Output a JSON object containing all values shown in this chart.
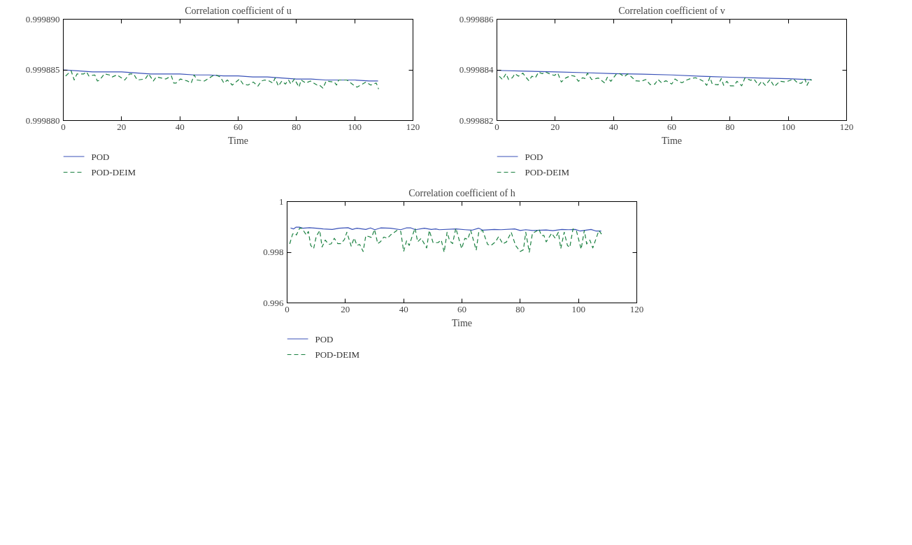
{
  "chart_data": [
    {
      "type": "line",
      "title": "Correlation coefficient of u",
      "xlabel": "Time",
      "xlim": [
        0,
        120
      ],
      "xticks": [
        0,
        20,
        40,
        60,
        80,
        100,
        120
      ],
      "ylim": [
        0.99988,
        0.99989
      ],
      "yticks": [
        {
          "value": 0.99988,
          "label": "0.999880"
        },
        0.999885,
        {
          "value": 0.99989,
          "label": "0.999890"
        }
      ],
      "legend": "bottom",
      "series": [
        {
          "name": "POD",
          "color": "#3a52b8",
          "line_style": "solid",
          "x": [
            0,
            5,
            10,
            15,
            20,
            25,
            30,
            35,
            40,
            45,
            50,
            55,
            60,
            65,
            70,
            75,
            80,
            85,
            90,
            95,
            100,
            105,
            108
          ],
          "values": [
            0.999885,
            0.9998849,
            0.9998848,
            0.9998848,
            0.9998848,
            0.9998847,
            0.9998846,
            0.9998846,
            0.9998846,
            0.9998845,
            0.9998845,
            0.9998844,
            0.9998844,
            0.9998843,
            0.9998843,
            0.9998842,
            0.9998841,
            0.9998841,
            0.999884,
            0.999884,
            0.999884,
            0.9998839,
            0.9998839
          ]
        },
        {
          "name": "POD-DEIM",
          "color": "#1a8040",
          "line_style": "dashed",
          "x": [
            0.8,
            2.7,
            3.75,
            4.7,
            7.0,
            8.0,
            8.75,
            10.8,
            11.7,
            12.5,
            14.1,
            15.8,
            16.8,
            18.4,
            21.1,
            22.7,
            24.1,
            25.4,
            28.1,
            29.3,
            30.9,
            31.9,
            35.2,
            37.1,
            37.9,
            38.7,
            40.2,
            42.6,
            43.9,
            44.9,
            45.9,
            48.4,
            51.2,
            52.3,
            53.9,
            55.1,
            56.3,
            58.0,
            60.5,
            61.7,
            63.4,
            65.2,
            66.8,
            68.0,
            69.1,
            70.7,
            71.9,
            72.7,
            73.8,
            75.0,
            76.2,
            77.3,
            78.1,
            79.3,
            80.9,
            81.6,
            83.2,
            84.8,
            87.1,
            87.9,
            89.1,
            90.2,
            93.0,
            93.75,
            94.5,
            97.3,
            99.6,
            100.8,
            103.9,
            105.5,
            107.4,
            108.2
          ],
          "values": [
            0.9998844,
            0.9998849,
            0.999884,
            0.9998846,
            0.9998846,
            0.9998848,
            0.9998844,
            0.9998845,
            0.9998839,
            0.999884,
            0.9998846,
            0.9998845,
            0.9998843,
            0.9998845,
            0.999884,
            0.9998846,
            0.9998846,
            0.999884,
            0.9998841,
            0.9998846,
            0.9998839,
            0.9998843,
            0.9998841,
            0.9998844,
            0.9998837,
            0.9998837,
            0.9998841,
            0.9998839,
            0.9998837,
            0.9998845,
            0.999884,
            0.9998839,
            0.9998844,
            0.9998845,
            0.9998843,
            0.9998837,
            0.999884,
            0.9998835,
            0.9998841,
            0.9998836,
            0.9998835,
            0.9998838,
            0.9998834,
            0.9998839,
            0.999884,
            0.9998839,
            0.9998837,
            0.9998842,
            0.9998834,
            0.9998839,
            0.9998836,
            0.999884,
            0.9998836,
            0.9998841,
            0.9998833,
            0.999884,
            0.9998837,
            0.9998839,
            0.9998835,
            0.9998835,
            0.9998832,
            0.9998839,
            0.9998838,
            0.9998835,
            0.999884,
            0.999884,
            0.9998835,
            0.9998833,
            0.9998838,
            0.9998835,
            0.9998837,
            0.9998831
          ]
        }
      ]
    },
    {
      "type": "line",
      "title": "Correlation coefficient of v",
      "xlabel": "Time",
      "xlim": [
        0,
        120
      ],
      "xticks": [
        0,
        20,
        40,
        60,
        80,
        100,
        120
      ],
      "ylim": [
        0.999882,
        0.999886
      ],
      "yticks": [
        0.999882,
        0.999884,
        0.999886
      ],
      "legend": "bottom",
      "series": [
        {
          "name": "POD",
          "color": "#3a52b8",
          "line_style": "solid",
          "x": [
            0,
            10,
            20,
            30,
            40,
            50,
            60,
            70,
            80,
            90,
            100,
            108
          ],
          "values": [
            0.99988398,
            0.99988395,
            0.99988392,
            0.99988389,
            0.99988385,
            0.99988383,
            0.9998838,
            0.99988375,
            0.99988371,
            0.99988368,
            0.99988365,
            0.99988361
          ]
        },
        {
          "name": "POD-DEIM",
          "color": "#1a8040",
          "line_style": "dashed",
          "x": [
            0.8,
            1.9,
            3.1,
            4.0,
            5.3,
            6.2,
            7.4,
            8.9,
            10.1,
            11.0,
            12.0,
            13.2,
            14.3,
            15.6,
            16.6,
            18.2,
            19.7,
            20.9,
            22.1,
            23.6,
            25.5,
            26.7,
            28.0,
            29.4,
            30.2,
            31.1,
            32.5,
            34.8,
            37.0,
            37.9,
            39.1,
            41.0,
            42.2,
            43.7,
            44.9,
            46.1,
            47.6,
            49.5,
            51.1,
            52.6,
            54.2,
            55.3,
            56.5,
            58.0,
            60.0,
            61.1,
            62.3,
            63.5,
            64.9,
            66.6,
            68.1,
            69.7,
            70.8,
            72.0,
            73.1,
            73.9,
            75.9,
            77.0,
            77.8,
            78.9,
            80.1,
            81.3,
            82.4,
            84.0,
            85.1,
            87.1,
            88.2,
            89.8,
            90.9,
            92.1,
            93.7,
            95.2,
            97.1,
            98.7,
            99.8,
            101.8,
            103.3,
            104.5,
            105.7,
            106.4,
            107.4,
            108.0
          ],
          "values": [
            0.99988375,
            0.99988362,
            0.99988385,
            0.99988362,
            0.99988369,
            0.99988385,
            0.99988375,
            0.99988387,
            0.99988369,
            0.99988357,
            0.99988375,
            0.99988369,
            0.99988391,
            0.99988385,
            0.99988392,
            0.99988384,
            0.99988378,
            0.99988387,
            0.99988352,
            0.99988368,
            0.99988378,
            0.99988375,
            0.99988355,
            0.99988369,
            0.99988366,
            0.99988387,
            0.99988362,
            0.99988368,
            0.99988348,
            0.99988371,
            0.99988355,
            0.99988384,
            0.99988385,
            0.99988373,
            0.99988384,
            0.99988373,
            0.99988357,
            0.99988355,
            0.99988362,
            0.99988342,
            0.99988344,
            0.99988362,
            0.99988349,
            0.99988357,
            0.99988344,
            0.99988364,
            0.99988355,
            0.99988349,
            0.99988359,
            0.99988366,
            0.99988369,
            0.99988362,
            0.99988355,
            0.99988339,
            0.99988371,
            0.99988344,
            0.99988341,
            0.99988366,
            0.99988339,
            0.99988355,
            0.99988337,
            0.99988337,
            0.99988355,
            0.99988337,
            0.99988368,
            0.99988359,
            0.99988364,
            0.99988339,
            0.99988355,
            0.99988339,
            0.99988362,
            0.99988334,
            0.99988355,
            0.99988353,
            0.99988355,
            0.99988364,
            0.99988347,
            0.99988347,
            0.99988364,
            0.99988339,
            0.99988362,
            0.99988359
          ]
        }
      ]
    },
    {
      "type": "line",
      "title": "Correlation coefficient of h",
      "xlabel": "Time",
      "xlim": [
        0,
        120
      ],
      "xticks": [
        0,
        20,
        40,
        60,
        80,
        100,
        120
      ],
      "ylim": [
        0.996,
        1
      ],
      "yticks": [
        0.996,
        0.998,
        1
      ],
      "legend": "bottom",
      "series": [
        {
          "name": "POD",
          "color": "#3a52b8",
          "line_style": "solid",
          "x": [
            1.2,
            2.2,
            3.1,
            4.2,
            5.4,
            7.7,
            10.0,
            12.4,
            15.5,
            17.8,
            20.9,
            22.4,
            24.0,
            27.0,
            28.6,
            30.1,
            32.1,
            35.5,
            39.0,
            40.9,
            42.5,
            44.0,
            47.1,
            49.5,
            51.0,
            52.2,
            58.0,
            61.1,
            63.4,
            65.7,
            67.2,
            71.1,
            73.4,
            78.1,
            80.0,
            81.9,
            84.2,
            88.9,
            91.2,
            94.3,
            96.6,
            98.9,
            100.5,
            104.3,
            105.9,
            107.8
          ],
          "values": [
            0.99896,
            0.99892,
            0.99899,
            0.99899,
            0.99895,
            0.99897,
            0.99895,
            0.99892,
            0.9989,
            0.99895,
            0.99897,
            0.9989,
            0.99895,
            0.9989,
            0.99896,
            0.99889,
            0.99896,
            0.99895,
            0.99889,
            0.99896,
            0.99896,
            0.99889,
            0.99895,
            0.9989,
            0.99892,
            0.99889,
            0.99892,
            0.99889,
            0.99887,
            0.99895,
            0.99887,
            0.9989,
            0.99889,
            0.99892,
            0.99886,
            0.99889,
            0.99886,
            0.99888,
            0.99885,
            0.9989,
            0.99889,
            0.9989,
            0.99884,
            0.9989,
            0.99884,
            0.99884
          ]
        },
        {
          "name": "POD-DEIM",
          "color": "#1a8040",
          "line_style": "dashed",
          "x": [
            0.9,
            1.9,
            2.7,
            3.2,
            4.3,
            5.0,
            5.8,
            6.6,
            7.3,
            8.1,
            9.1,
            10.0,
            11.2,
            12.0,
            13.1,
            14.3,
            15.1,
            16.2,
            17.4,
            18.5,
            19.7,
            20.5,
            22.0,
            23.0,
            24.0,
            24.9,
            26.1,
            27.0,
            28.0,
            29.0,
            30.0,
            31.1,
            32.1,
            33.2,
            34.4,
            35.5,
            37.7,
            39.0,
            40.0,
            41.0,
            41.9,
            42.9,
            43.9,
            44.8,
            46.0,
            47.9,
            48.8,
            50.1,
            51.8,
            52.9,
            53.9,
            54.9,
            55.8,
            56.8,
            57.9,
            59.9,
            61.0,
            62.0,
            63.0,
            64.9,
            65.8,
            67.1,
            68.8,
            69.9,
            71.5,
            72.6,
            74.0,
            75.3,
            76.9,
            78.4,
            80.0,
            81.1,
            81.9,
            83.1,
            84.2,
            85.4,
            86.4,
            87.3,
            88.1,
            88.9,
            90.8,
            92.0,
            93.1,
            93.9,
            95.1,
            96.2,
            97.0,
            98.1,
            99.3,
            100.9,
            102.0,
            102.8,
            103.9,
            104.9,
            107.0,
            108.0
          ],
          "values": [
            0.99833,
            0.99872,
            0.99875,
            0.99868,
            0.99895,
            0.99895,
            0.99882,
            0.99868,
            0.99882,
            0.99827,
            0.99814,
            0.99862,
            0.99886,
            0.99821,
            0.99848,
            0.99831,
            0.99833,
            0.99855,
            0.99834,
            0.99834,
            0.99851,
            0.99879,
            0.99824,
            0.99856,
            0.99827,
            0.99831,
            0.99803,
            0.99865,
            0.99862,
            0.99858,
            0.9989,
            0.99834,
            0.99842,
            0.9986,
            0.99855,
            0.99868,
            0.99886,
            0.99882,
            0.99803,
            0.99845,
            0.99827,
            0.99862,
            0.99895,
            0.99841,
            0.99855,
            0.99817,
            0.99886,
            0.99838,
            0.99838,
            0.99848,
            0.998,
            0.99879,
            0.99845,
            0.99834,
            0.99895,
            0.99814,
            0.99855,
            0.99851,
            0.99886,
            0.99808,
            0.99882,
            0.99886,
            0.99831,
            0.99826,
            0.99841,
            0.99862,
            0.99833,
            0.99841,
            0.99879,
            0.99827,
            0.99803,
            0.9981,
            0.99879,
            0.998,
            0.99875,
            0.99882,
            0.99892,
            0.99865,
            0.99867,
            0.99841,
            0.99875,
            0.99855,
            0.99879,
            0.99814,
            0.99879,
            0.99827,
            0.99819,
            0.99892,
            0.99884,
            0.99812,
            0.99886,
            0.99833,
            0.99848,
            0.99817,
            0.99886,
            0.9987
          ]
        }
      ]
    }
  ]
}
